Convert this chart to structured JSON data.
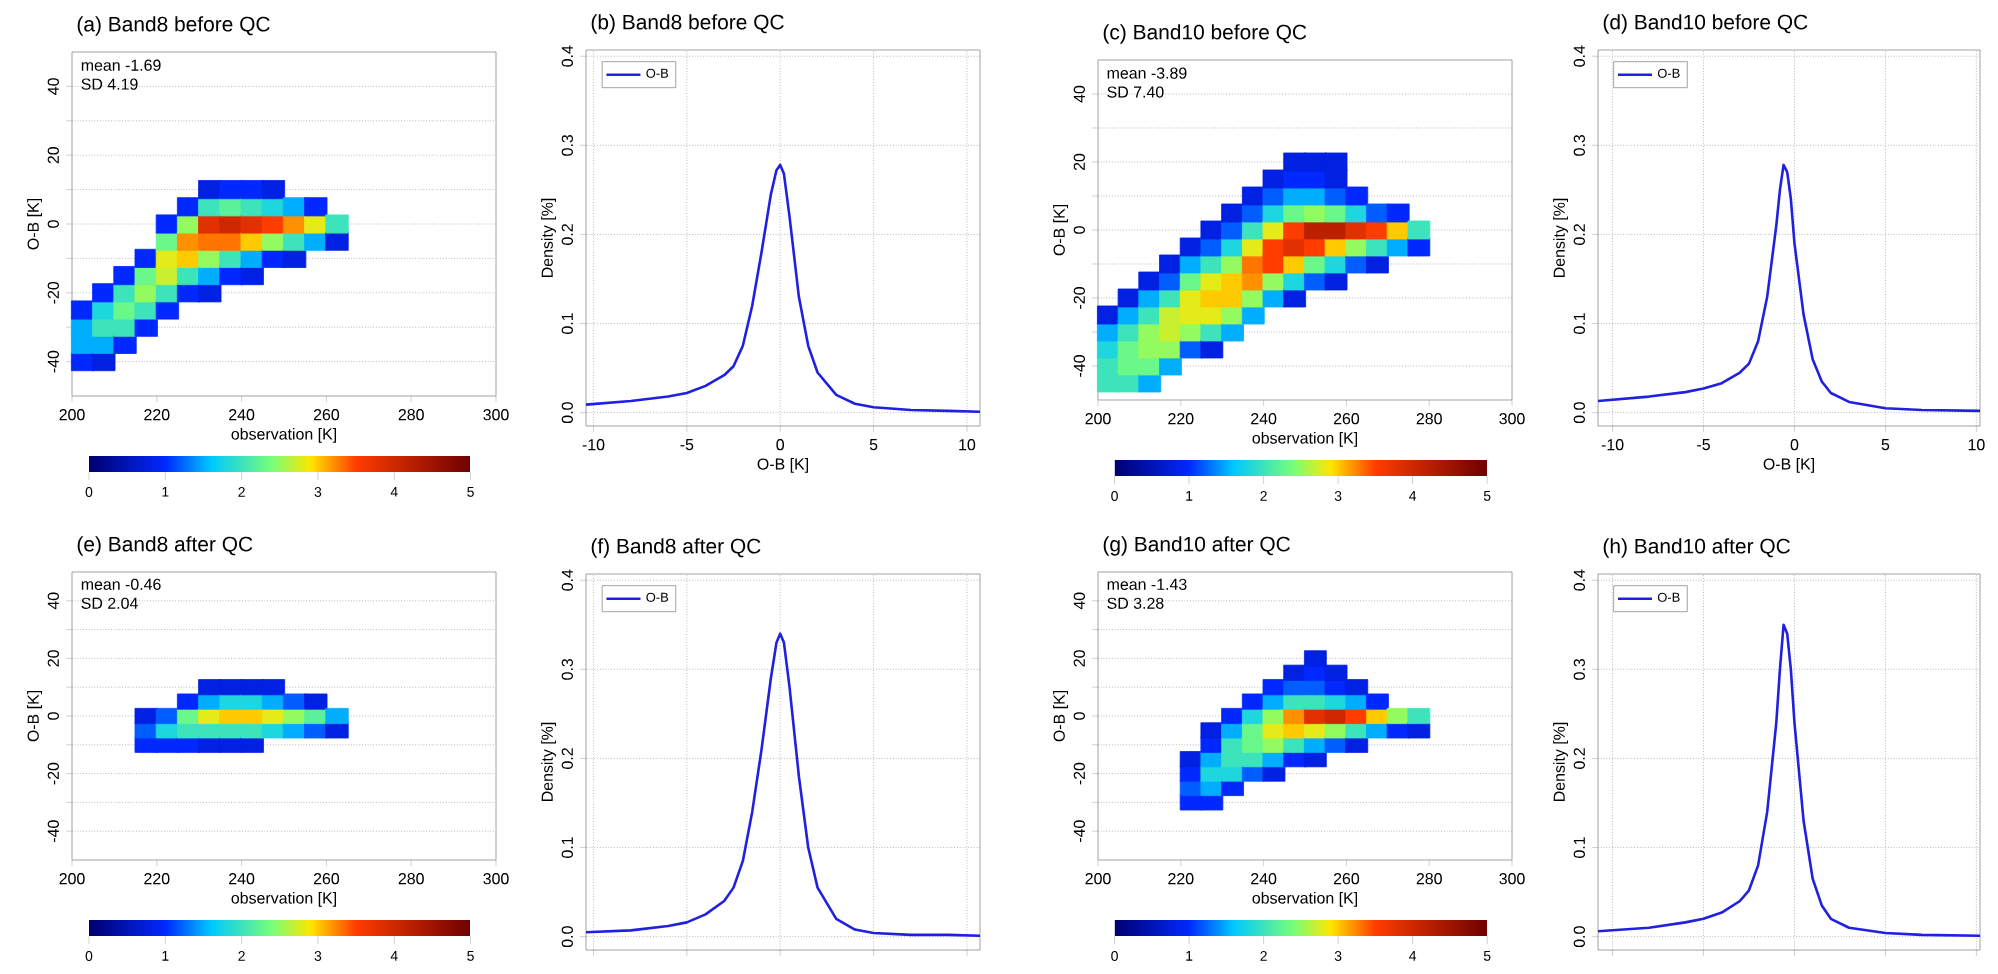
{
  "chart_data": [
    {
      "type": "scatter",
      "title": "(a) Band8 before QC",
      "xlabel": "observation [K]",
      "ylabel": "O-B [K]",
      "annotations": [
        "mean -1.69",
        "SD 4.19"
      ],
      "xlim": [
        200,
        300
      ],
      "ylim": [
        -50,
        50
      ],
      "xticks": [
        200,
        220,
        240,
        260,
        280,
        300
      ],
      "yticks": [
        -40,
        {
          "value": -30,
          "label": null
        },
        -20,
        {
          "value": -10,
          "label": null
        },
        0,
        {
          "value": 10,
          "label": null
        },
        20,
        {
          "value": 30,
          "label": null
        },
        40
      ],
      "grid": "y",
      "marker": "square",
      "clim": [
        0,
        5
      ],
      "cticks": [
        0,
        1,
        2,
        3,
        4,
        5
      ],
      "series": [
        {
          "x": [
            202.5,
            202.5,
            202.5,
            202.5,
            207.5,
            207.5,
            207.5,
            207.5,
            207.5,
            212.5,
            212.5,
            212.5,
            212.5,
            212.5,
            217.5,
            217.5,
            217.5,
            217.5,
            217.5,
            222.5,
            222.5,
            222.5,
            222.5,
            222.5,
            222.5,
            227.5,
            227.5,
            227.5,
            227.5,
            227.5,
            227.5,
            232.5,
            232.5,
            232.5,
            232.5,
            232.5,
            232.5,
            232.5,
            237.5,
            237.5,
            237.5,
            237.5,
            237.5,
            237.5,
            242.5,
            242.5,
            242.5,
            242.5,
            242.5,
            242.5,
            247.5,
            247.5,
            247.5,
            247.5,
            247.5,
            252.5,
            252.5,
            252.5,
            252.5,
            257.5,
            257.5,
            257.5,
            262.5,
            262.5
          ],
          "values": [
            -40,
            -35,
            -30,
            -25,
            -40,
            -35,
            -30,
            -25,
            -20,
            -35,
            -30,
            -25,
            -20,
            -15,
            -30,
            -25,
            -20,
            -15,
            -10,
            -25,
            -20,
            -15,
            -10,
            -5,
            0,
            -20,
            -15,
            -10,
            -5,
            0,
            5,
            -20,
            -15,
            -10,
            -5,
            0,
            5,
            10,
            -15,
            -10,
            -5,
            0,
            5,
            10,
            -15,
            -10,
            -5,
            0,
            5,
            10,
            -10,
            -5,
            0,
            5,
            10,
            -10,
            -5,
            0,
            5,
            -5,
            0,
            5,
            -5,
            0
          ],
          "cvalues": [
            1,
            1.5,
            1.5,
            1,
            0.8,
            1.5,
            2,
            1.8,
            1,
            1,
            2,
            2.3,
            2,
            1,
            1,
            2,
            2.5,
            2.3,
            1,
            1,
            2,
            2.7,
            2.8,
            2.3,
            1,
            1,
            2,
            3,
            3.2,
            2.5,
            1,
            0.8,
            1.5,
            2.5,
            3.3,
            3.8,
            2,
            0.8,
            1,
            2,
            3.3,
            4,
            2.2,
            1,
            0.8,
            1.5,
            3,
            3.8,
            2,
            1,
            1,
            2.5,
            3.5,
            1.8,
            0.8,
            0.8,
            2,
            3.2,
            1.5,
            1.5,
            2.8,
            1,
            0.8,
            2
          ]
        }
      ]
    },
    {
      "type": "line",
      "title": "(b) Band8 before QC",
      "xlabel": "O-B [K]",
      "ylabel": "Density [%]",
      "xlim": [
        -10.4,
        10.7
      ],
      "ylim": [
        -0.015,
        0.407
      ],
      "xticks": [
        -10,
        -5,
        0,
        5,
        10
      ],
      "yticks": [
        {
          "value": 0,
          "label": "0.0"
        },
        0.1,
        0.2,
        0.3,
        0.4
      ],
      "grid": true,
      "legend": "top left",
      "series": [
        {
          "name": "O-B",
          "color": "#2020e0",
          "x": [
            -10.4,
            -8,
            -6,
            -5,
            -4,
            -3,
            -2.5,
            -2,
            -1.5,
            -1,
            -0.5,
            -0.2,
            0,
            0.2,
            0.5,
            1,
            1.5,
            2,
            3,
            4,
            5,
            7,
            9,
            10.7
          ],
          "values": [
            0.009,
            0.013,
            0.018,
            0.022,
            0.03,
            0.042,
            0.052,
            0.075,
            0.12,
            0.18,
            0.245,
            0.272,
            0.278,
            0.268,
            0.22,
            0.13,
            0.075,
            0.045,
            0.02,
            0.01,
            0.006,
            0.003,
            0.002,
            0.001
          ]
        }
      ]
    },
    {
      "type": "scatter",
      "title": "(c) Band10 before QC",
      "xlabel": "observation [K]",
      "ylabel": "O-B [K]",
      "annotations": [
        "mean -3.89",
        "SD 7.40"
      ],
      "xlim": [
        200,
        300
      ],
      "ylim": [
        -50,
        50
      ],
      "xticks": [
        200,
        220,
        240,
        260,
        280,
        300
      ],
      "yticks": [
        -40,
        {
          "value": -30,
          "label": null
        },
        -20,
        {
          "value": -10,
          "label": null
        },
        0,
        {
          "value": 10,
          "label": null
        },
        20,
        {
          "value": 30,
          "label": null
        },
        40
      ],
      "grid": "y",
      "marker": "square",
      "clim": [
        0,
        5
      ],
      "cticks": [
        0,
        1,
        2,
        3,
        4,
        5
      ],
      "series": [
        {
          "x": [
            202.5,
            202.5,
            202.5,
            202.5,
            202.5,
            207.5,
            207.5,
            207.5,
            207.5,
            207.5,
            207.5,
            212.5,
            212.5,
            212.5,
            212.5,
            212.5,
            212.5,
            212.5,
            217.5,
            217.5,
            217.5,
            217.5,
            217.5,
            217.5,
            217.5,
            222.5,
            222.5,
            222.5,
            222.5,
            222.5,
            222.5,
            222.5,
            227.5,
            227.5,
            227.5,
            227.5,
            227.5,
            227.5,
            227.5,
            227.5,
            232.5,
            232.5,
            232.5,
            232.5,
            232.5,
            232.5,
            232.5,
            232.5,
            237.5,
            237.5,
            237.5,
            237.5,
            237.5,
            237.5,
            237.5,
            237.5,
            242.5,
            242.5,
            242.5,
            242.5,
            242.5,
            242.5,
            242.5,
            242.5,
            247.5,
            247.5,
            247.5,
            247.5,
            247.5,
            247.5,
            247.5,
            247.5,
            247.5,
            252.5,
            252.5,
            252.5,
            252.5,
            252.5,
            252.5,
            252.5,
            252.5,
            257.5,
            257.5,
            257.5,
            257.5,
            257.5,
            257.5,
            257.5,
            257.5,
            262.5,
            262.5,
            262.5,
            262.5,
            262.5,
            267.5,
            267.5,
            267.5,
            267.5,
            272.5,
            272.5,
            272.5,
            277.5,
            277.5
          ],
          "values": [
            -45,
            -40,
            -35,
            -30,
            -25,
            -45,
            -40,
            -35,
            -30,
            -25,
            -20,
            -45,
            -40,
            -35,
            -30,
            -25,
            -20,
            -15,
            -40,
            -35,
            -30,
            -25,
            -20,
            -15,
            -10,
            -35,
            -30,
            -25,
            -20,
            -15,
            -10,
            -5,
            -35,
            -30,
            -25,
            -20,
            -15,
            -10,
            -5,
            0,
            -30,
            -25,
            -20,
            -15,
            -10,
            -5,
            0,
            5,
            -25,
            -20,
            -15,
            -10,
            -5,
            0,
            5,
            10,
            -20,
            -15,
            -10,
            -5,
            0,
            5,
            10,
            15,
            -20,
            -15,
            -10,
            -5,
            0,
            5,
            10,
            15,
            20,
            -15,
            -10,
            -5,
            0,
            5,
            10,
            15,
            20,
            -15,
            -10,
            -5,
            0,
            5,
            10,
            15,
            20,
            -10,
            -5,
            0,
            5,
            10,
            -10,
            -5,
            0,
            5,
            -5,
            0,
            5,
            -5,
            0
          ],
          "cvalues": [
            2,
            2,
            1.8,
            1.5,
            0.8,
            2,
            2.3,
            2.3,
            2,
            1.5,
            0.8,
            1.5,
            2.3,
            2.5,
            2.5,
            2,
            1.5,
            0.8,
            1.5,
            2.5,
            2.7,
            2.7,
            2,
            1.2,
            0.8,
            1.2,
            2.5,
            2.8,
            2.8,
            2.3,
            1.5,
            0.8,
            0.8,
            2,
            2.8,
            3,
            2.8,
            2,
            1.2,
            0.8,
            1.5,
            2.5,
            3,
            3,
            2.5,
            1.8,
            1.2,
            0.8,
            1.5,
            2.5,
            3.2,
            3.3,
            2.8,
            2,
            1.2,
            0.8,
            1.5,
            2.5,
            3.5,
            3.5,
            2.8,
            1.8,
            1.2,
            0.8,
            0.8,
            1.8,
            3,
            3.8,
            3.5,
            2.3,
            1.5,
            1,
            0.8,
            1.2,
            2.3,
            3.5,
            4.2,
            2.5,
            1.5,
            1,
            0.8,
            0.8,
            1.8,
            3,
            4.2,
            2.3,
            1.2,
            0.8,
            0.8,
            1.2,
            2.5,
            3.8,
            1.8,
            1,
            0.8,
            2,
            3.5,
            1.2,
            1.5,
            3,
            1,
            1,
            2
          ]
        }
      ]
    },
    {
      "type": "line",
      "title": "(d) Band10 before QC",
      "xlabel": "O-B [K]",
      "ylabel": "Density [%]",
      "xlim": [
        -10.8,
        10.2
      ],
      "ylim": [
        -0.015,
        0.407
      ],
      "xticks": [
        -10,
        -5,
        0,
        5,
        10
      ],
      "yticks": [
        {
          "value": 0,
          "label": "0.0"
        },
        0.1,
        0.2,
        0.3,
        0.4
      ],
      "grid": true,
      "legend": "top left",
      "series": [
        {
          "name": "O-B",
          "color": "#2020e0",
          "x": [
            -10.8,
            -8,
            -6,
            -5,
            -4,
            -3,
            -2.5,
            -2,
            -1.5,
            -1,
            -0.8,
            -0.6,
            -0.4,
            -0.2,
            0,
            0.5,
            1,
            1.5,
            2,
            3,
            5,
            7,
            10.2
          ],
          "values": [
            0.013,
            0.018,
            0.023,
            0.027,
            0.033,
            0.045,
            0.055,
            0.08,
            0.13,
            0.21,
            0.25,
            0.278,
            0.27,
            0.24,
            0.19,
            0.11,
            0.06,
            0.035,
            0.022,
            0.012,
            0.005,
            0.003,
            0.002
          ]
        }
      ]
    },
    {
      "type": "scatter",
      "title": "(e) Band8 after QC",
      "xlabel": "observation [K]",
      "ylabel": "O-B [K]",
      "annotations": [
        "mean -0.46",
        "SD 2.04"
      ],
      "xlim": [
        200,
        300
      ],
      "ylim": [
        -50,
        50
      ],
      "xticks": [
        200,
        220,
        240,
        260,
        280,
        300
      ],
      "yticks": [
        -40,
        {
          "value": -30,
          "label": null
        },
        -20,
        {
          "value": -10,
          "label": null
        },
        0,
        {
          "value": 10,
          "label": null
        },
        20,
        {
          "value": 30,
          "label": null
        },
        40
      ],
      "grid": "y",
      "marker": "square",
      "clim": [
        0,
        5
      ],
      "cticks": [
        0,
        1,
        2,
        3,
        4,
        5
      ],
      "series": [
        {
          "x": [
            217.5,
            217.5,
            217.5,
            222.5,
            222.5,
            222.5,
            227.5,
            227.5,
            227.5,
            227.5,
            232.5,
            232.5,
            232.5,
            232.5,
            232.5,
            237.5,
            237.5,
            237.5,
            237.5,
            237.5,
            242.5,
            242.5,
            242.5,
            242.5,
            242.5,
            247.5,
            247.5,
            247.5,
            247.5,
            252.5,
            252.5,
            252.5,
            257.5,
            257.5,
            257.5,
            262.5,
            262.5
          ],
          "values": [
            -10,
            -5,
            0,
            -10,
            -5,
            0,
            -10,
            -5,
            0,
            5,
            -10,
            -5,
            0,
            5,
            10,
            -10,
            -5,
            0,
            5,
            10,
            -10,
            -5,
            0,
            5,
            10,
            -5,
            0,
            5,
            10,
            -5,
            0,
            5,
            -5,
            0,
            5,
            -5,
            0
          ],
          "cvalues": [
            1,
            1.2,
            0.8,
            1,
            1.8,
            1.2,
            1,
            2,
            2.3,
            1,
            0.8,
            2,
            2.8,
            1.5,
            0.8,
            0.8,
            2,
            3,
            1.8,
            0.8,
            0.8,
            2,
            3,
            1.8,
            0.8,
            1.8,
            2.8,
            1.5,
            0.8,
            1.5,
            2.5,
            1.2,
            1.2,
            2.2,
            0.8,
            0.8,
            1.5
          ]
        }
      ]
    },
    {
      "type": "line",
      "title": "(f) Band8 after QC",
      "ylabel": "Density [%]",
      "xlim": [
        -10.4,
        10.7
      ],
      "ylim": [
        -0.015,
        0.407
      ],
      "xticks": [
        -10,
        -5,
        0,
        5,
        10
      ],
      "yticks": [
        {
          "value": 0,
          "label": "0.0"
        },
        0.1,
        0.2,
        0.3,
        0.4
      ],
      "grid": true,
      "legend": "top left",
      "tick_labels": "y",
      "series": [
        {
          "name": "O-B",
          "color": "#2020e0",
          "x": [
            -10.4,
            -8,
            -6,
            -5,
            -4,
            -3,
            -2.5,
            -2,
            -1.5,
            -1,
            -0.5,
            -0.2,
            0,
            0.2,
            0.5,
            1,
            1.5,
            2,
            3,
            4,
            5,
            7,
            9,
            10.7
          ],
          "values": [
            0.005,
            0.007,
            0.012,
            0.016,
            0.025,
            0.04,
            0.055,
            0.085,
            0.14,
            0.21,
            0.29,
            0.33,
            0.34,
            0.33,
            0.28,
            0.18,
            0.1,
            0.055,
            0.02,
            0.008,
            0.004,
            0.002,
            0.002,
            0.001
          ]
        }
      ]
    },
    {
      "type": "scatter",
      "title": "(g) Band10 after QC",
      "xlabel": "observation [K]",
      "ylabel": "O-B [K]",
      "annotations": [
        "mean -1.43",
        "SD 3.28"
      ],
      "xlim": [
        200,
        300
      ],
      "ylim": [
        -50,
        50
      ],
      "xticks": [
        200,
        220,
        240,
        260,
        280,
        300
      ],
      "yticks": [
        -40,
        {
          "value": -30,
          "label": null
        },
        -20,
        {
          "value": -10,
          "label": null
        },
        0,
        {
          "value": 10,
          "label": null
        },
        20,
        {
          "value": 30,
          "label": null
        },
        40
      ],
      "grid": "y",
      "marker": "square",
      "clim": [
        0,
        5
      ],
      "cticks": [
        0,
        1,
        2,
        3,
        4,
        5
      ],
      "series": [
        {
          "x": [
            222.5,
            222.5,
            222.5,
            222.5,
            227.5,
            227.5,
            227.5,
            227.5,
            227.5,
            227.5,
            232.5,
            232.5,
            232.5,
            232.5,
            232.5,
            232.5,
            237.5,
            237.5,
            237.5,
            237.5,
            237.5,
            237.5,
            242.5,
            242.5,
            242.5,
            242.5,
            242.5,
            242.5,
            242.5,
            247.5,
            247.5,
            247.5,
            247.5,
            247.5,
            247.5,
            247.5,
            252.5,
            252.5,
            252.5,
            252.5,
            252.5,
            252.5,
            252.5,
            252.5,
            257.5,
            257.5,
            257.5,
            257.5,
            257.5,
            257.5,
            262.5,
            262.5,
            262.5,
            262.5,
            262.5,
            267.5,
            267.5,
            267.5,
            272.5,
            272.5,
            277.5,
            277.5
          ],
          "values": [
            -30,
            -25,
            -20,
            -15,
            -30,
            -25,
            -20,
            -15,
            -10,
            -5,
            -25,
            -20,
            -15,
            -10,
            -5,
            0,
            -20,
            -15,
            -10,
            -5,
            0,
            5,
            -20,
            -15,
            -10,
            -5,
            0,
            5,
            10,
            -15,
            -10,
            -5,
            0,
            5,
            10,
            15,
            -15,
            -10,
            -5,
            0,
            5,
            10,
            15,
            20,
            -10,
            -5,
            0,
            5,
            10,
            15,
            -10,
            -5,
            0,
            5,
            10,
            -5,
            0,
            5,
            -5,
            0,
            -5,
            0
          ],
          "cvalues": [
            1,
            1.2,
            1,
            0.8,
            1,
            1.5,
            1.8,
            1.5,
            1,
            0.8,
            1,
            1.8,
            2,
            2,
            1.5,
            1,
            1.2,
            2,
            2.3,
            2.3,
            1.8,
            1,
            0.8,
            1.5,
            2.5,
            2.8,
            2.5,
            1.5,
            1,
            1,
            2,
            3,
            3.2,
            2,
            1.2,
            0.8,
            0.8,
            1.5,
            2.8,
            3.8,
            2,
            1.2,
            1,
            0.8,
            1.2,
            2.5,
            4,
            1.8,
            1,
            0.8,
            0.8,
            2,
            3.5,
            1.5,
            0.8,
            1.5,
            3,
            1,
            1,
            2.5,
            0.8,
            2
          ]
        }
      ]
    },
    {
      "type": "line",
      "title": "(h) Band10 after QC",
      "ylabel": "Density [%]",
      "xlim": [
        -10.8,
        10.2
      ],
      "ylim": [
        -0.015,
        0.407
      ],
      "xticks": [
        -10,
        -5,
        0,
        5,
        10
      ],
      "yticks": [
        {
          "value": 0,
          "label": "0.0"
        },
        0.1,
        0.2,
        0.3,
        0.4
      ],
      "grid": true,
      "legend": "top left",
      "tick_labels": "y",
      "series": [
        {
          "name": "O-B",
          "color": "#2020e0",
          "x": [
            -10.8,
            -8,
            -6,
            -5,
            -4,
            -3,
            -2.5,
            -2,
            -1.5,
            -1,
            -0.8,
            -0.6,
            -0.4,
            -0.2,
            0,
            0.5,
            1,
            1.5,
            2,
            3,
            5,
            7,
            10.2
          ],
          "values": [
            0.006,
            0.01,
            0.016,
            0.02,
            0.027,
            0.04,
            0.052,
            0.08,
            0.14,
            0.24,
            0.3,
            0.35,
            0.34,
            0.3,
            0.24,
            0.13,
            0.065,
            0.035,
            0.02,
            0.01,
            0.004,
            0.002,
            0.001
          ]
        }
      ]
    }
  ]
}
